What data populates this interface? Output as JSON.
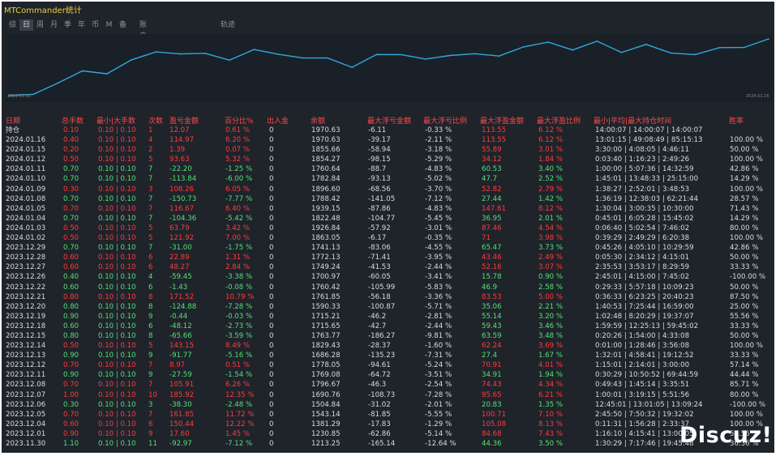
{
  "app": {
    "title": "MTCommander统计"
  },
  "tabs": [
    {
      "label": "综",
      "active": false
    },
    {
      "label": "日",
      "active": true
    },
    {
      "label": "周",
      "active": false
    },
    {
      "label": "月",
      "active": false
    },
    {
      "label": "季",
      "active": false
    },
    {
      "label": "年",
      "active": false
    },
    {
      "label": "币",
      "active": false
    },
    {
      "label": "M",
      "active": false
    },
    {
      "label": "备",
      "active": false
    }
  ],
  "tab_account": "账户",
  "tab_track": "轨迹",
  "chart_data": {
    "type": "line",
    "x_start_label": "2023.11.30",
    "x_end_label": "2024.01.16",
    "series": [
      {
        "values": [
          1213.25,
          1230.85,
          1381.29,
          1543.14,
          1504.84,
          1690.76,
          1796.67,
          1769.08,
          1778.05,
          1686.28,
          1829.43,
          1763.77,
          1715.65,
          1715.21,
          1590.33,
          1761.85,
          1760.42,
          1700.97,
          1749.24,
          1772.13,
          1741.13,
          1863.05,
          1926.84,
          1822.48,
          1939.15,
          1788.42,
          1896.6,
          1782.84,
          1760.64,
          1854.27,
          1855.66,
          1970.63
        ]
      }
    ],
    "colors": {
      "line": "#2fa9d9",
      "background": "#1a2028"
    }
  },
  "table": {
    "headers": [
      "日期",
      "总手数",
      "最小|大手数",
      "次数",
      "盈亏金额",
      "百分比%",
      "出入金",
      "余额",
      "最大浮亏金额",
      "最大浮亏比例",
      "最大浮盈金额",
      "最大浮盈比例",
      "最小|平均|最大持仓时间",
      "胜率"
    ],
    "rows": [
      {
        "date": "持仓",
        "lots": "0.10",
        "minmax": "0.10 | 0.10",
        "count": "1",
        "pnl": "12.07",
        "pct": "0.61 %",
        "io": "0",
        "bal": "1970.63",
        "fl": "-6.11",
        "flp": "-0.33 %",
        "fp": "113.55",
        "fpp": "6.12 %",
        "time": "14:00:07 | 14:00:07 | 14:00:07",
        "win": "",
        "pos": true
      },
      {
        "date": "2024.01.16",
        "lots": "0.40",
        "minmax": "0.10 | 0.10",
        "count": "4",
        "pnl": "114.97",
        "pct": "6.20 %",
        "io": "0",
        "bal": "1970.63",
        "fl": "-39.17",
        "flp": "-2.11 %",
        "fp": "113.55",
        "fpp": "6.12 %",
        "time": "13:01:15 | 49:08:49 | 85:15:13",
        "win": "100.00 %",
        "pos": true
      },
      {
        "date": "2024.01.15",
        "lots": "0.20",
        "minmax": "0.10 | 0.10",
        "count": "2",
        "pnl": "1.39",
        "pct": "0.07 %",
        "io": "0",
        "bal": "1855.66",
        "fl": "-58.94",
        "flp": "-3.18 %",
        "fp": "55.89",
        "fpp": "3.01 %",
        "time": "3:30:00 | 4:08:05 | 4:46:11",
        "win": "50.00 %",
        "pos": true
      },
      {
        "date": "2024.01.12",
        "lots": "0.50",
        "minmax": "0.10 | 0.10",
        "count": "5",
        "pnl": "93.63",
        "pct": "5.32 %",
        "io": "0",
        "bal": "1854.27",
        "fl": "-98.15",
        "flp": "-5.29 %",
        "fp": "34.12",
        "fpp": "1.84 %",
        "time": "0:03:40 | 1:16:23 | 2:49:26",
        "win": "100.00 %",
        "pos": true
      },
      {
        "date": "2024.01.11",
        "lots": "0.70",
        "minmax": "0.10 | 0.10",
        "count": "7",
        "pnl": "-22.20",
        "pct": "-1.25 %",
        "io": "0",
        "bal": "1760.64",
        "fl": "-88.7",
        "flp": "-4.83 %",
        "fp": "60.53",
        "fpp": "3.40 %",
        "time": "1:00:00 | 5:07:36 | 14:32:59",
        "win": "42.86 %",
        "pos": false
      },
      {
        "date": "2024.01.10",
        "lots": "0.70",
        "minmax": "0.10 | 0.10",
        "count": "7",
        "pnl": "-113.84",
        "pct": "-6.00 %",
        "io": "0",
        "bal": "1782.84",
        "fl": "-93.13",
        "flp": "-5.02 %",
        "fp": "47.7",
        "fpp": "2.52 %",
        "time": "1:45:01 | 13:48:33 | 25:15:00",
        "win": "14.29 %",
        "pos": false
      },
      {
        "date": "2024.01.09",
        "lots": "0.30",
        "minmax": "0.10 | 0.10",
        "count": "3",
        "pnl": "108.26",
        "pct": "6.05 %",
        "io": "0",
        "bal": "1896.60",
        "fl": "-68.56",
        "flp": "-3.70 %",
        "fp": "52.82",
        "fpp": "2.79 %",
        "time": "1:38:27 | 2:52:01 | 3:48:53",
        "win": "100.00 %",
        "pos": true
      },
      {
        "date": "2024.01.08",
        "lots": "0.70",
        "minmax": "0.10 | 0.10",
        "count": "7",
        "pnl": "-150.73",
        "pct": "-7.77 %",
        "io": "0",
        "bal": "1788.42",
        "fl": "-141.05",
        "flp": "-7.12 %",
        "fp": "27.44",
        "fpp": "1.42 %",
        "time": "1:36:19 | 12:38:03 | 62:21:44",
        "win": "28.57 %",
        "pos": false
      },
      {
        "date": "2024.01.05",
        "lots": "0.70",
        "minmax": "0.10 | 0.10",
        "count": "7",
        "pnl": "116.67",
        "pct": "6.40 %",
        "io": "0",
        "bal": "1939.15",
        "fl": "-87.86",
        "flp": "-4.83 %",
        "fp": "147.61",
        "fpp": "8.12 %",
        "time": "1:30:04 | 3:00:35 | 10:30:00",
        "win": "71.43 %",
        "pos": true
      },
      {
        "date": "2024.01.04",
        "lots": "0.70",
        "minmax": "0.10 | 0.10",
        "count": "7",
        "pnl": "-104.36",
        "pct": "-5.42 %",
        "io": "0",
        "bal": "1822.48",
        "fl": "-104.77",
        "flp": "-5.45 %",
        "fp": "36.95",
        "fpp": "2.01 %",
        "time": "0:45:01 | 6:05:28 | 15:45:02",
        "win": "14.29 %",
        "pos": false
      },
      {
        "date": "2024.01.03",
        "lots": "0.50",
        "minmax": "0.10 | 0.10",
        "count": "5",
        "pnl": "63.79",
        "pct": "3.42 %",
        "io": "0",
        "bal": "1926.84",
        "fl": "-57.92",
        "flp": "-3.01 %",
        "fp": "87.46",
        "fpp": "4.54 %",
        "time": "0:06:40 | 5:02:54 | 7:46:02",
        "win": "80.00 %",
        "pos": true
      },
      {
        "date": "2024.01.02",
        "lots": "0.50",
        "minmax": "0.10 | 0.10",
        "count": "5",
        "pnl": "121.92",
        "pct": "7.00 %",
        "io": "0",
        "bal": "1863.05",
        "fl": "-6.17",
        "flp": "-0.35 %",
        "fp": "71",
        "fpp": "3.98 %",
        "time": "0:39:29 | 2:49:29 | 6:20:38",
        "win": "100.00 %",
        "pos": true
      },
      {
        "date": "2023.12.29",
        "lots": "0.70",
        "minmax": "0.10 | 0.10",
        "count": "7",
        "pnl": "-31.00",
        "pct": "-1.75 %",
        "io": "0",
        "bal": "1741.13",
        "fl": "-83.06",
        "flp": "-4.55 %",
        "fp": "65.47",
        "fpp": "3.73 %",
        "time": "0:45:26 | 4:05:10 | 10:29:59",
        "win": "42.86 %",
        "pos": false
      },
      {
        "date": "2023.12.28",
        "lots": "0.60",
        "minmax": "0.10 | 0.10",
        "count": "6",
        "pnl": "22.89",
        "pct": "1.31 %",
        "io": "0",
        "bal": "1772.13",
        "fl": "-71.41",
        "flp": "-3.95 %",
        "fp": "43.46",
        "fpp": "2.49 %",
        "time": "0:05:30 | 2:34:12 | 4:15:01",
        "win": "50.00 %",
        "pos": true
      },
      {
        "date": "2023.12.27",
        "lots": "0.60",
        "minmax": "0.10 | 0.10",
        "count": "6",
        "pnl": "48.27",
        "pct": "2.84 %",
        "io": "0",
        "bal": "1749.24",
        "fl": "-41.53",
        "flp": "-2.44 %",
        "fp": "52.16",
        "fpp": "3.07 %",
        "time": "2:35:53 | 3:53:17 | 8:29:59",
        "win": "33.33 %",
        "pos": true
      },
      {
        "date": "2023.12.26",
        "lots": "0.40",
        "minmax": "0.10 | 0.10",
        "count": "4",
        "pnl": "-59.45",
        "pct": "-3.38 %",
        "io": "0",
        "bal": "1700.97",
        "fl": "-60.05",
        "flp": "-3.41 %",
        "fp": "15.78",
        "fpp": "0.90 %",
        "time": "2:45:01 | 4:15:00 | 7:45:02",
        "win": "-100.00 %",
        "pos": false
      },
      {
        "date": "2023.12.22",
        "lots": "0.60",
        "minmax": "0.10 | 0.10",
        "count": "6",
        "pnl": "-1.43",
        "pct": "-0.08 %",
        "io": "0",
        "bal": "1760.42",
        "fl": "-105.99",
        "flp": "-5.83 %",
        "fp": "46.9",
        "fpp": "2.58 %",
        "time": "0:29:33 | 5:57:18 | 10:09:23",
        "win": "50.00 %",
        "pos": false
      },
      {
        "date": "2023.12.21",
        "lots": "0.80",
        "minmax": "0.10 | 0.10",
        "count": "8",
        "pnl": "171.52",
        "pct": "10.79 %",
        "io": "0",
        "bal": "1761.85",
        "fl": "-56.18",
        "flp": "-3.36 %",
        "fp": "83.53",
        "fpp": "5.00 %",
        "time": "0:36:33 | 6:23:25 | 20:40:23",
        "win": "87.50 %",
        "pos": true
      },
      {
        "date": "2023.12.20",
        "lots": "0.80",
        "minmax": "0.10 | 0.10",
        "count": "8",
        "pnl": "-124.88",
        "pct": "-7.28 %",
        "io": "0",
        "bal": "1590.33",
        "fl": "-100.87",
        "flp": "-5.71 %",
        "fp": "35.06",
        "fpp": "2.21 %",
        "time": "1:40:53 | 7:25:44 | 16:59:00",
        "win": "25.00 %",
        "pos": false
      },
      {
        "date": "2023.12.19",
        "lots": "0.90",
        "minmax": "0.10 | 0.10",
        "count": "9",
        "pnl": "-0.44",
        "pct": "-0.03 %",
        "io": "0",
        "bal": "1715.21",
        "fl": "-46.2",
        "flp": "-2.81 %",
        "fp": "55.14",
        "fpp": "3.20 %",
        "time": "1:02:48 | 8:20:29 | 19:37:07",
        "win": "55.56 %",
        "pos": false
      },
      {
        "date": "2023.12.18",
        "lots": "0.60",
        "minmax": "0.10 | 0.10",
        "count": "6",
        "pnl": "-48.12",
        "pct": "-2.73 %",
        "io": "0",
        "bal": "1715.65",
        "fl": "-42.7",
        "flp": "-2.44 %",
        "fp": "59.43",
        "fpp": "3.46 %",
        "time": "1:59:59 | 12:25:13 | 59:45:02",
        "win": "33.33 %",
        "pos": false
      },
      {
        "date": "2023.12.15",
        "lots": "0.80",
        "minmax": "0.10 | 0.10",
        "count": "8",
        "pnl": "-65.66",
        "pct": "-3.59 %",
        "io": "0",
        "bal": "1763.77",
        "fl": "-186.27",
        "flp": "-9.81 %",
        "fp": "63.59",
        "fpp": "3.48 %",
        "time": "0:20:26 | 1:54:00 | 4:33:08",
        "win": "50.00 %",
        "pos": false
      },
      {
        "date": "2023.12.14",
        "lots": "0.50",
        "minmax": "0.10 | 0.10",
        "count": "5",
        "pnl": "143.15",
        "pct": "8.49 %",
        "io": "0",
        "bal": "1829.43",
        "fl": "-28.37",
        "flp": "-1.60 %",
        "fp": "62.24",
        "fpp": "3.69 %",
        "time": "0:01:00 | 1:28:46 | 3:56:08",
        "win": "100.00 %",
        "pos": true
      },
      {
        "date": "2023.12.13",
        "lots": "0.90",
        "minmax": "0.10 | 0.10",
        "count": "9",
        "pnl": "-91.77",
        "pct": "-5.16 %",
        "io": "0",
        "bal": "1686.28",
        "fl": "-135.23",
        "flp": "-7.31 %",
        "fp": "27.4",
        "fpp": "1.67 %",
        "time": "1:32:01 | 4:58:41 | 19:12:52",
        "win": "33.33 %",
        "pos": false
      },
      {
        "date": "2023.12.12",
        "lots": "0.70",
        "minmax": "0.10 | 0.10",
        "count": "7",
        "pnl": "8.97",
        "pct": "0.51 %",
        "io": "0",
        "bal": "1778.05",
        "fl": "-94.61",
        "flp": "-5.24 %",
        "fp": "70.91",
        "fpp": "4.01 %",
        "time": "1:15:01 | 2:14:01 | 3:00:00",
        "win": "57.14 %",
        "pos": true
      },
      {
        "date": "2023.12.11",
        "lots": "0.90",
        "minmax": "0.10 | 0.10",
        "count": "9",
        "pnl": "-27.59",
        "pct": "-1.54 %",
        "io": "0",
        "bal": "1769.08",
        "fl": "-64.72",
        "flp": "-3.51 %",
        "fp": "34.91",
        "fpp": "1.94 %",
        "time": "0:30:29 | 10:50:52 | 69:44:59",
        "win": "44.44 %",
        "pos": false
      },
      {
        "date": "2023.12.08",
        "lots": "0.70",
        "minmax": "0.10 | 0.10",
        "count": "7",
        "pnl": "105.91",
        "pct": "6.26 %",
        "io": "0",
        "bal": "1796.67",
        "fl": "-46.3",
        "flp": "-2.54 %",
        "fp": "74.43",
        "fpp": "4.34 %",
        "time": "0:49:43 | 1:45:14 | 3:35:51",
        "win": "85.71 %",
        "pos": true
      },
      {
        "date": "2023.12.07",
        "lots": "1.00",
        "minmax": "0.10 | 0.10",
        "count": "10",
        "pnl": "185.92",
        "pct": "12.35 %",
        "io": "0",
        "bal": "1690.76",
        "fl": "-108.73",
        "flp": "-7.28 %",
        "fp": "95.65",
        "fpp": "6.21 %",
        "time": "1:00:01 | 3:19:15 | 5:51:56",
        "win": "80.00 %",
        "pos": true
      },
      {
        "date": "2023.12.06",
        "lots": "0.30",
        "minmax": "0.10 | 0.10",
        "count": "3",
        "pnl": "-38.30",
        "pct": "-2.48 %",
        "io": "0",
        "bal": "1504.84",
        "fl": "-31.02",
        "flp": "-2.01 %",
        "fp": "20.83",
        "fpp": "1.35 %",
        "time": "12:45:01 | 13:01:05 | 13:09:24",
        "win": "-100.00 %",
        "pos": false
      },
      {
        "date": "2023.12.05",
        "lots": "0.70",
        "minmax": "0.10 | 0.10",
        "count": "7",
        "pnl": "161.85",
        "pct": "11.72 %",
        "io": "0",
        "bal": "1543.14",
        "fl": "-81.85",
        "flp": "-5.55 %",
        "fp": "100.71",
        "fpp": "7.10 %",
        "time": "2:45:50 | 7:50:32 | 19:32:02",
        "win": "100.00 %",
        "pos": true
      },
      {
        "date": "2023.12.04",
        "lots": "0.60",
        "minmax": "0.10 | 0.10",
        "count": "6",
        "pnl": "150.44",
        "pct": "12.22 %",
        "io": "0",
        "bal": "1381.29",
        "fl": "-17.83",
        "flp": "-1.29 %",
        "fp": "105.08",
        "fpp": "8.13 %",
        "time": "0:11:31 | 1:56:28 | 2:33:37",
        "win": "100.00 %",
        "pos": true
      },
      {
        "date": "2023.12.01",
        "lots": "0.90",
        "minmax": "0.10 | 0.10",
        "count": "9",
        "pnl": "17.60",
        "pct": "1.45 %",
        "io": "0",
        "bal": "1230.85",
        "fl": "-62.86",
        "flp": "-5.14 %",
        "fp": "84.68",
        "fpp": "7.43 %",
        "time": "1:16:10 | 4:15:41 | 13:00:05",
        "win": "55.56 %",
        "pos": true
      },
      {
        "date": "2023.11.30",
        "lots": "1.10",
        "minmax": "0.10 | 0.10",
        "count": "11",
        "pnl": "-92.97",
        "pct": "-7.12 %",
        "io": "0",
        "bal": "1213.25",
        "fl": "-165.14",
        "flp": "-12.64 %",
        "fp": "44.36",
        "fpp": "3.50 %",
        "time": "1:30:29 | 7:17:46 | 19:45:48",
        "win": "36.36 %",
        "pos": false
      }
    ]
  },
  "watermark": "Discuz!"
}
